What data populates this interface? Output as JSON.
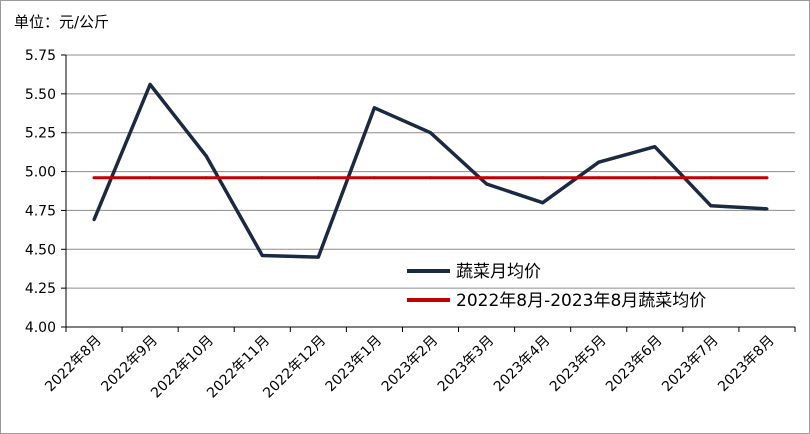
{
  "chart_data": {
    "type": "line",
    "unit_label": "单位：元/公斤",
    "categories": [
      "2022年8月",
      "2022年9月",
      "2022年10月",
      "2022年11月",
      "2022年12月",
      "2023年1月",
      "2023年2月",
      "2023年3月",
      "2023年4月",
      "2023年5月",
      "2023年6月",
      "2023年7月",
      "2023年8月"
    ],
    "series": [
      {
        "name": "蔬菜月均价",
        "color": "#1b2a41",
        "values": [
          4.69,
          5.56,
          5.1,
          4.46,
          4.45,
          5.41,
          5.25,
          4.92,
          4.8,
          5.06,
          5.16,
          4.78,
          4.76
        ]
      },
      {
        "name": "2022年8月-2023年8月蔬菜均价",
        "color": "#c00000",
        "values": [
          4.96,
          4.96,
          4.96,
          4.96,
          4.96,
          4.96,
          4.96,
          4.96,
          4.96,
          4.96,
          4.96,
          4.96,
          4.96
        ]
      }
    ],
    "y_ticks": [
      "4.00",
      "4.25",
      "4.50",
      "4.75",
      "5.00",
      "5.25",
      "5.50",
      "5.75"
    ],
    "ylim": [
      4.0,
      5.75
    ],
    "grid": true,
    "legend_position": "lower-right"
  }
}
